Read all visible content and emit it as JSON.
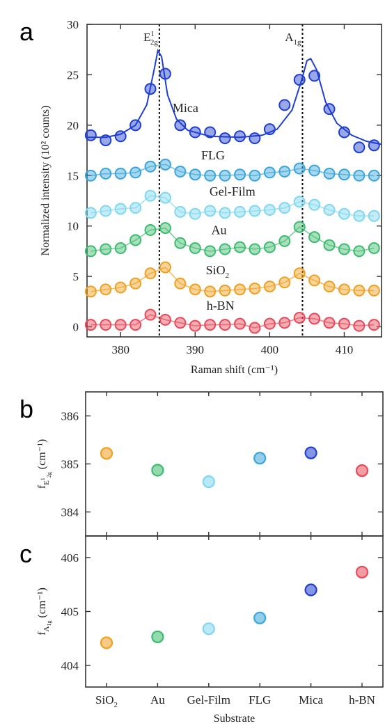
{
  "panels": {
    "a": "a",
    "b": "b",
    "c": "c"
  },
  "colors": {
    "Mica": "#1f3fd0",
    "FLG": "#3aa6dc",
    "Gel-Film": "#7fd7f0",
    "Au": "#3dbb6e",
    "SiO2": "#f0a020",
    "h-BN": "#e84a5a"
  },
  "chart_data": [
    {
      "panel": "a",
      "type": "scatter",
      "xlabel": "Raman shift (cm⁻¹)",
      "ylabel": "Normalized intensity (10² counts)",
      "xlim": [
        375.5,
        415
      ],
      "ylim": [
        -1,
        30
      ],
      "xticks": [
        380,
        390,
        400,
        410
      ],
      "yticks": [
        0,
        5,
        10,
        15,
        20,
        25,
        30
      ],
      "grid": false,
      "reference_lines": [
        {
          "x": 385.2,
          "label_main": "E",
          "label_sup": "1",
          "label_sub": "2g"
        },
        {
          "x": 404.4,
          "label_main": "A",
          "label_sup": "",
          "label_sub": "1g"
        }
      ],
      "series": [
        {
          "name": "Mica",
          "label_main": "Mica",
          "label_sub": "",
          "label_x": 388.7,
          "label_y": 21.3,
          "x": [
            376,
            378,
            380,
            382,
            384,
            386,
            388,
            390,
            392,
            394,
            396,
            398,
            400,
            402,
            404,
            406,
            408,
            410,
            412,
            414
          ],
          "y": [
            19.0,
            18.5,
            18.9,
            20.0,
            23.6,
            25.1,
            20.0,
            19.3,
            19.3,
            18.7,
            18.9,
            18.7,
            19.6,
            22.0,
            24.5,
            24.9,
            21.6,
            19.3,
            17.8,
            18.0
          ],
          "fit": [
            [
              375.5,
              18.8
            ],
            [
              378,
              18.8
            ],
            [
              380,
              19.1
            ],
            [
              382,
              20.0
            ],
            [
              383.5,
              22.0
            ],
            [
              384.5,
              25.5
            ],
            [
              385,
              27.4
            ],
            [
              385.5,
              26.8
            ],
            [
              386.3,
              23.0
            ],
            [
              387.5,
              20.6
            ],
            [
              389,
              19.5
            ],
            [
              392,
              18.9
            ],
            [
              396,
              18.8
            ],
            [
              399,
              19.0
            ],
            [
              401,
              19.6
            ],
            [
              403,
              21.5
            ],
            [
              404.3,
              24.5
            ],
            [
              405,
              26.4
            ],
            [
              405.5,
              26.6
            ],
            [
              406.3,
              25.5
            ],
            [
              407.5,
              22.3
            ],
            [
              409,
              20.2
            ],
            [
              411,
              19.0
            ],
            [
              413,
              18.4
            ],
            [
              415,
              18.1
            ]
          ]
        },
        {
          "name": "FLG",
          "label_main": "FLG",
          "label_sub": "",
          "label_x": 392.4,
          "label_y": 16.6,
          "x": [
            376,
            378,
            380,
            382,
            384,
            386,
            388,
            390,
            392,
            394,
            396,
            398,
            400,
            402,
            404,
            406,
            408,
            410,
            412,
            414
          ],
          "y": [
            15.0,
            15.2,
            15.2,
            15.3,
            15.9,
            16.1,
            15.4,
            15.1,
            15.0,
            15.0,
            15.1,
            15.0,
            15.3,
            15.4,
            15.7,
            15.5,
            15.2,
            15.1,
            15.0,
            15.0
          ]
        },
        {
          "name": "Gel-Film",
          "label_main": "Gel-Film",
          "label_sub": "",
          "label_x": 395.0,
          "label_y": 13.0,
          "x": [
            376,
            378,
            380,
            382,
            384,
            386,
            388,
            390,
            392,
            394,
            396,
            398,
            400,
            402,
            404,
            406,
            408,
            410,
            412,
            414
          ],
          "y": [
            11.3,
            11.5,
            11.7,
            11.8,
            13.0,
            12.8,
            11.4,
            11.2,
            11.5,
            11.3,
            11.4,
            11.5,
            11.6,
            11.8,
            12.4,
            12.1,
            11.6,
            11.2,
            11.0,
            11.0
          ]
        },
        {
          "name": "Au",
          "label_main": "Au",
          "label_sub": "",
          "label_x": 393.2,
          "label_y": 9.2,
          "x": [
            376,
            378,
            380,
            382,
            384,
            386,
            388,
            390,
            392,
            394,
            396,
            398,
            400,
            402,
            404,
            406,
            408,
            410,
            412,
            414
          ],
          "y": [
            7.5,
            7.7,
            7.8,
            8.6,
            9.6,
            9.8,
            8.3,
            7.8,
            7.5,
            7.7,
            7.9,
            7.7,
            7.9,
            8.5,
            9.9,
            8.9,
            8.1,
            7.7,
            7.5,
            7.8
          ]
        },
        {
          "name": "SiO2",
          "label_main": "SiO",
          "label_sub": "2",
          "label_x": 393.0,
          "label_y": 5.2,
          "x": [
            376,
            378,
            380,
            382,
            384,
            386,
            388,
            390,
            392,
            394,
            396,
            398,
            400,
            402,
            404,
            406,
            408,
            410,
            412,
            414
          ],
          "y": [
            3.5,
            3.7,
            3.9,
            4.3,
            5.3,
            5.9,
            4.3,
            3.7,
            3.5,
            3.6,
            3.7,
            3.8,
            4.0,
            4.4,
            5.3,
            4.6,
            4.0,
            3.7,
            3.6,
            3.6
          ]
        },
        {
          "name": "h-BN",
          "label_main": "h-BN",
          "label_sub": "",
          "label_x": 393.4,
          "label_y": 1.7,
          "x": [
            376,
            378,
            380,
            382,
            384,
            386,
            388,
            390,
            392,
            394,
            396,
            398,
            400,
            402,
            404,
            406,
            408,
            410,
            412,
            414
          ],
          "y": [
            0.2,
            0.2,
            0.2,
            0.2,
            1.2,
            0.7,
            0.4,
            0.1,
            0.2,
            0.2,
            0.3,
            -0.1,
            0.3,
            0.4,
            0.9,
            0.8,
            0.4,
            0.3,
            0.1,
            0.2
          ]
        }
      ]
    },
    {
      "panel": "b",
      "type": "scatter",
      "ylabel_main": "f",
      "ylabel_sub": "E",
      "ylabel_subsup": "1",
      "ylabel_subsub": "2g",
      "ylabel_unit": " (cm⁻¹)",
      "ylim": [
        383.5,
        386.5
      ],
      "yticks": [
        384,
        385,
        386
      ],
      "categories": [
        "SiO2",
        "Au",
        "Gel-Film",
        "FLG",
        "Mica",
        "h-BN"
      ],
      "values": [
        385.22,
        384.87,
        384.63,
        385.12,
        385.23,
        384.86
      ]
    },
    {
      "panel": "c",
      "type": "scatter",
      "xlabel": "Substrate",
      "ylabel_main": "f",
      "ylabel_sub": "A",
      "ylabel_subsub": "1g",
      "ylabel_unit": " (cm⁻¹)",
      "ylim": [
        403.6,
        406.4
      ],
      "yticks": [
        404,
        405,
        406
      ],
      "categories": [
        "SiO2",
        "Au",
        "Gel-Film",
        "FLG",
        "Mica",
        "h-BN"
      ],
      "category_labels": [
        {
          "main": "SiO",
          "sub": "2"
        },
        {
          "main": "Au",
          "sub": ""
        },
        {
          "main": "Gel-Film",
          "sub": ""
        },
        {
          "main": "FLG",
          "sub": ""
        },
        {
          "main": "Mica",
          "sub": ""
        },
        {
          "main": "h-BN",
          "sub": ""
        }
      ],
      "values": [
        404.42,
        404.53,
        404.68,
        404.88,
        405.4,
        405.73
      ]
    }
  ]
}
